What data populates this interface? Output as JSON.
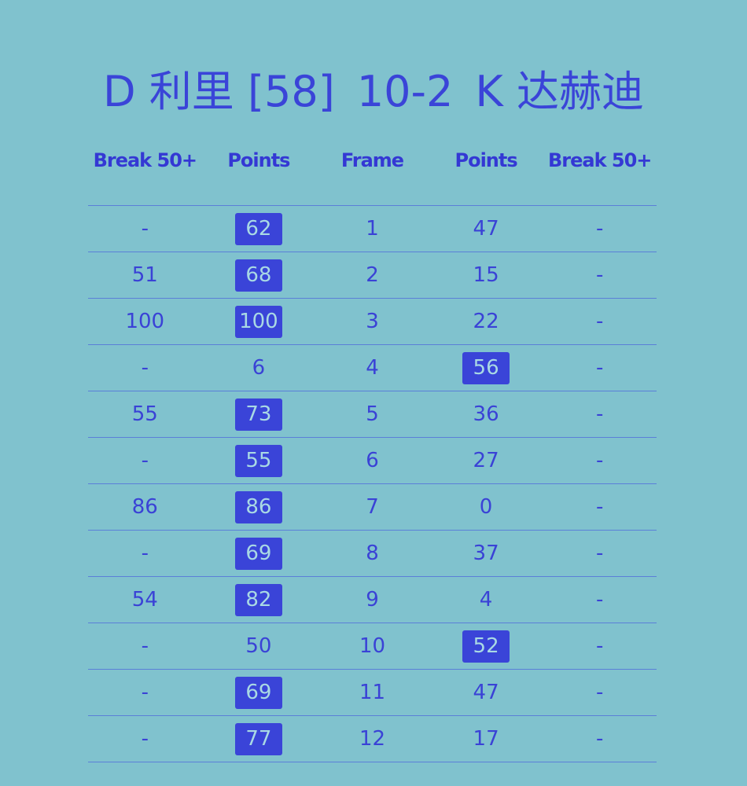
{
  "title": {
    "left": "D 利里 [58]",
    "score": "10-2",
    "right": "K 达赫迪"
  },
  "headers": [
    "Break 50+",
    "Points",
    "Frame",
    "Points",
    "Break 50+"
  ],
  "colors": {
    "background": "#80c2ce",
    "text": "#3a44d8",
    "winner_highlight": "#3a44d8"
  },
  "rows": [
    {
      "lb": "-",
      "lp": "62",
      "f": "1",
      "rp": "47",
      "rb": "-",
      "winner": "left"
    },
    {
      "lb": "51",
      "lp": "68",
      "f": "2",
      "rp": "15",
      "rb": "-",
      "winner": "left"
    },
    {
      "lb": "100",
      "lp": "100",
      "f": "3",
      "rp": "22",
      "rb": "-",
      "winner": "left"
    },
    {
      "lb": "-",
      "lp": "6",
      "f": "4",
      "rp": "56",
      "rb": "-",
      "winner": "right"
    },
    {
      "lb": "55",
      "lp": "73",
      "f": "5",
      "rp": "36",
      "rb": "-",
      "winner": "left"
    },
    {
      "lb": "-",
      "lp": "55",
      "f": "6",
      "rp": "27",
      "rb": "-",
      "winner": "left"
    },
    {
      "lb": "86",
      "lp": "86",
      "f": "7",
      "rp": "0",
      "rb": "-",
      "winner": "left"
    },
    {
      "lb": "-",
      "lp": "69",
      "f": "8",
      "rp": "37",
      "rb": "-",
      "winner": "left"
    },
    {
      "lb": "54",
      "lp": "82",
      "f": "9",
      "rp": "4",
      "rb": "-",
      "winner": "left"
    },
    {
      "lb": "-",
      "lp": "50",
      "f": "10",
      "rp": "52",
      "rb": "-",
      "winner": "right"
    },
    {
      "lb": "-",
      "lp": "69",
      "f": "11",
      "rp": "47",
      "rb": "-",
      "winner": "left"
    },
    {
      "lb": "-",
      "lp": "77",
      "f": "12",
      "rp": "17",
      "rb": "-",
      "winner": "left"
    }
  ]
}
